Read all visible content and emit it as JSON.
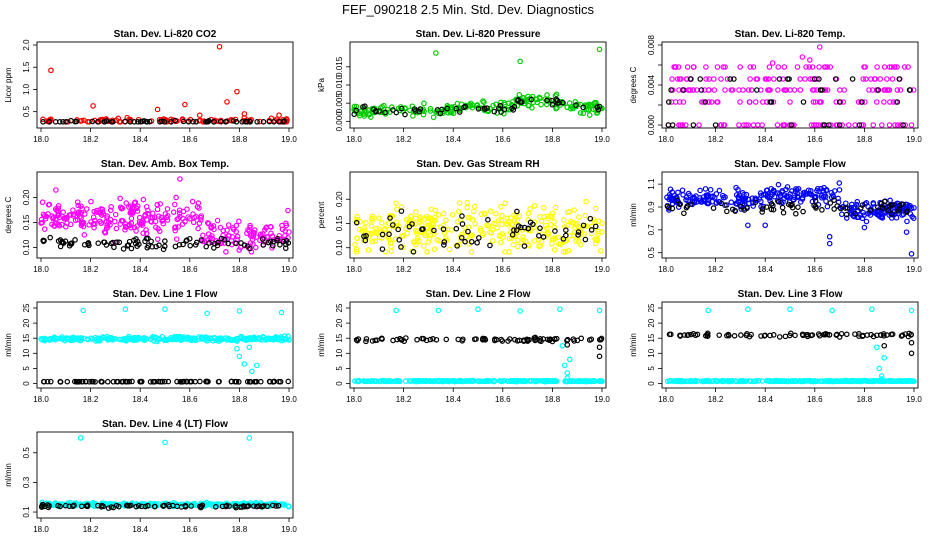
{
  "title": "FEF_090218  2.5 Min. Std. Dev. Diagnostics",
  "colors": {
    "red": "#ff0000",
    "green": "#00cc00",
    "magenta": "#ff00ff",
    "yellow": "#ffff00",
    "blue": "#0000ff",
    "cyan": "#00ffff",
    "black": "#000000"
  },
  "chart_data": [
    {
      "type": "scatter",
      "title": "Stan. Dev. Li-820 CO2",
      "xlabel": "",
      "ylabel": "Licor ppm",
      "xlim": [
        18.0,
        19.0
      ],
      "ylim": [
        0.2,
        2.0
      ],
      "xticks": [
        18.0,
        18.2,
        18.4,
        18.6,
        18.8,
        19.0
      ],
      "xtick_labels": [
        "18.0",
        "18.2",
        "18.4",
        "18.6",
        "18.8",
        "19.0"
      ],
      "yticks": [
        0.5,
        1.0,
        1.5,
        2.0
      ],
      "ytick_labels": [
        "0.5",
        "1.0",
        "1.5",
        "2.0"
      ],
      "series": [
        {
          "name": "primary",
          "color": "red",
          "base": 0.3,
          "noise": 0.06,
          "n": 90,
          "outliers": [
            [
              18.04,
              1.43
            ],
            [
              18.21,
              0.63
            ],
            [
              18.47,
              0.55
            ],
            [
              18.58,
              0.66
            ],
            [
              18.64,
              0.42
            ],
            [
              18.72,
              1.96
            ],
            [
              18.75,
              0.72
            ],
            [
              18.79,
              0.95
            ],
            [
              18.82,
              0.45
            ],
            [
              18.96,
              0.42
            ]
          ]
        },
        {
          "name": "secondary",
          "color": "black",
          "base": 0.27,
          "noise": 0.03,
          "n": 60,
          "outliers": []
        }
      ]
    },
    {
      "type": "scatter",
      "title": "Stan. Dev. Li-820 Pressure",
      "xlabel": "",
      "ylabel": "kPa",
      "xlim": [
        18.0,
        19.0
      ],
      "ylim": [
        -0.001,
        0.021
      ],
      "xticks": [
        18.0,
        18.2,
        18.4,
        18.6,
        18.8,
        19.0
      ],
      "xtick_labels": [
        "18.0",
        "18.2",
        "18.4",
        "18.6",
        "18.8",
        "19.0"
      ],
      "yticks": [
        0.0,
        0.005,
        0.01,
        0.015
      ],
      "ytick_labels": [
        "0.000",
        "0.005",
        "0.010",
        "0.015"
      ],
      "series": [
        {
          "name": "primary",
          "color": "green",
          "base": 0.003,
          "noise": 0.0018,
          "n": 200,
          "outliers": [
            [
              18.33,
              0.0188
            ],
            [
              18.67,
              0.0165
            ],
            [
              18.99,
              0.0198
            ],
            [
              18.68,
              0.0065
            ],
            [
              18.72,
              0.0068
            ],
            [
              18.75,
              0.0063
            ]
          ]
        },
        {
          "name": "secondary",
          "color": "black",
          "base": 0.003,
          "noise": 0.0012,
          "n": 55,
          "outliers": []
        }
      ]
    },
    {
      "type": "scatter",
      "title": "Stan. Dev. Li-820 Temp.",
      "xlabel": "",
      "ylabel": "degrees C",
      "xlim": [
        18.0,
        19.0
      ],
      "ylim": [
        0.0,
        0.008
      ],
      "xticks": [
        18.0,
        18.2,
        18.4,
        18.6,
        18.8,
        19.0
      ],
      "xtick_labels": [
        "18.0",
        "18.2",
        "18.4",
        "18.6",
        "18.8",
        "19.0"
      ],
      "yticks": [
        0.0,
        0.002,
        0.004,
        0.006,
        0.008
      ],
      "ytick_labels": [
        "0.000",
        "",
        "0.004",
        "",
        "0.008"
      ],
      "series": [
        {
          "name": "primary",
          "color": "magenta",
          "levels": [
            0.0,
            0.0023,
            0.0035,
            0.0046,
            0.0058
          ],
          "n": 220,
          "outliers": [
            [
              18.62,
              0.0078
            ],
            [
              18.55,
              0.0068
            ],
            [
              18.43,
              0.0062
            ],
            [
              18.58,
              0.0065
            ]
          ]
        },
        {
          "name": "secondary",
          "color": "black",
          "levels": [
            0.0,
            0.0023,
            0.0035,
            0.0046
          ],
          "n": 40,
          "outliers": []
        }
      ]
    },
    {
      "type": "scatter",
      "title": "Stan. Dev. Amb. Box Temp.",
      "xlabel": "",
      "ylabel": "degrees C",
      "xlim": [
        18.0,
        19.0
      ],
      "ylim": [
        0.085,
        0.245
      ],
      "xticks": [
        18.0,
        18.2,
        18.4,
        18.6,
        18.8,
        19.0
      ],
      "xtick_labels": [
        "18.0",
        "18.2",
        "18.4",
        "18.6",
        "18.8",
        "19.0"
      ],
      "yticks": [
        0.1,
        0.15,
        0.2
      ],
      "ytick_labels": [
        "0.10",
        "0.15",
        "0.20"
      ],
      "series": [
        {
          "name": "primary",
          "color": "magenta",
          "base": 0.16,
          "noise": 0.035,
          "n": 320,
          "outliers": [
            [
              18.56,
              0.237
            ],
            [
              18.06,
              0.215
            ]
          ]
        },
        {
          "name": "secondary",
          "color": "black",
          "base": 0.108,
          "noise": 0.012,
          "n": 90,
          "outliers": []
        }
      ]
    },
    {
      "type": "scatter",
      "title": "Stan. Dev. Gas Stream RH",
      "xlabel": "",
      "ylabel": "percent",
      "xlim": [
        18.0,
        19.0
      ],
      "ylim": [
        0.085,
        0.25
      ],
      "xticks": [
        18.0,
        18.2,
        18.4,
        18.6,
        18.8,
        19.0
      ],
      "xtick_labels": [
        "18.0",
        "18.2",
        "18.4",
        "18.6",
        "18.8",
        "19.0"
      ],
      "yticks": [
        0.1,
        0.15,
        0.2
      ],
      "ytick_labels": [
        "0.10",
        "0.15",
        "0.20"
      ],
      "series": [
        {
          "name": "primary",
          "color": "yellow",
          "base": 0.14,
          "noise": 0.05,
          "n": 330,
          "outliers": []
        },
        {
          "name": "secondary",
          "color": "black",
          "base": 0.13,
          "noise": 0.04,
          "n": 60,
          "outliers": []
        }
      ]
    },
    {
      "type": "scatter",
      "title": "Stan. Dev. Sample Flow",
      "xlabel": "",
      "ylabel": "ml/min",
      "xlim": [
        18.0,
        19.0
      ],
      "ylim": [
        0.48,
        1.18
      ],
      "xticks": [
        18.0,
        18.2,
        18.4,
        18.6,
        18.8,
        19.0
      ],
      "xtick_labels": [
        "18.0",
        "18.2",
        "18.4",
        "18.6",
        "18.8",
        "19.0"
      ],
      "yticks": [
        0.5,
        0.7,
        0.9,
        1.1
      ],
      "ytick_labels": [
        "0.5",
        "0.7",
        "0.9",
        "1.1"
      ],
      "series": [
        {
          "name": "primary",
          "color": "blue",
          "base": 0.97,
          "noise": 0.09,
          "n": 330,
          "outliers": [
            [
              18.99,
              0.49
            ],
            [
              18.66,
              0.58
            ],
            [
              18.66,
              0.64
            ],
            [
              18.33,
              0.74
            ],
            [
              18.4,
              0.74
            ],
            [
              18.8,
              0.72
            ],
            [
              18.97,
              0.68
            ]
          ]
        },
        {
          "name": "secondary",
          "color": "black",
          "base": 0.9,
          "noise": 0.06,
          "n": 70,
          "outliers": []
        }
      ]
    },
    {
      "type": "scatter",
      "title": "Stan. Dev. Line 1 Flow",
      "xlabel": "",
      "ylabel": "ml/min",
      "xlim": [
        18.0,
        19.0
      ],
      "ylim": [
        -0.5,
        26.0
      ],
      "xticks": [
        18.0,
        18.2,
        18.4,
        18.6,
        18.8,
        19.0
      ],
      "xtick_labels": [
        "18.0",
        "18.2",
        "18.4",
        "18.6",
        "18.8",
        "19.0"
      ],
      "yticks": [
        0,
        5,
        10,
        15,
        20,
        25
      ],
      "ytick_labels": [
        "0",
        "5",
        "10",
        "15",
        "20",
        "25"
      ],
      "series": [
        {
          "name": "primary",
          "color": "cyan",
          "base": 14.8,
          "noise": 0.7,
          "n": 300,
          "outliers": [
            [
              18.17,
              24.2
            ],
            [
              18.34,
              24.6
            ],
            [
              18.5,
              24.6
            ],
            [
              18.67,
              23.2
            ],
            [
              18.8,
              24.0
            ],
            [
              18.97,
              23.5
            ],
            [
              18.8,
              9.0
            ],
            [
              18.82,
              6.5
            ],
            [
              18.84,
              12.0
            ],
            [
              18.87,
              6.0
            ],
            [
              18.79,
              11.5
            ],
            [
              18.85,
              4.0
            ]
          ]
        },
        {
          "name": "secondary",
          "color": "black",
          "base": 0.6,
          "noise": 0.08,
          "n": 90,
          "outliers": []
        }
      ]
    },
    {
      "type": "scatter",
      "title": "Stan. Dev. Line 2 Flow",
      "xlabel": "",
      "ylabel": "ml/min",
      "xlim": [
        18.0,
        19.0
      ],
      "ylim": [
        -0.5,
        26.0
      ],
      "xticks": [
        18.0,
        18.2,
        18.4,
        18.6,
        18.8,
        19.0
      ],
      "xtick_labels": [
        "18.0",
        "18.2",
        "18.4",
        "18.6",
        "18.8",
        "19.0"
      ],
      "yticks": [
        0,
        5,
        10,
        15,
        20,
        25
      ],
      "ytick_labels": [
        "0",
        "5",
        "10",
        "15",
        "20",
        "25"
      ],
      "series": [
        {
          "name": "primary",
          "color": "cyan",
          "base": 0.8,
          "noise": 0.15,
          "n": 300,
          "outliers": [
            [
              18.17,
              24.2
            ],
            [
              18.34,
              24.2
            ],
            [
              18.5,
              24.6
            ],
            [
              18.67,
              24.0
            ],
            [
              18.83,
              24.6
            ],
            [
              18.99,
              24.2
            ],
            [
              18.85,
              6.0
            ],
            [
              18.86,
              3.5
            ],
            [
              18.87,
              8.0
            ],
            [
              18.84,
              12.5
            ],
            [
              18.86,
              1.8
            ]
          ]
        },
        {
          "name": "secondary",
          "color": "black",
          "base": 14.5,
          "noise": 0.6,
          "n": 80,
          "outliers": [
            [
              18.86,
              12.8
            ],
            [
              18.99,
              9.0
            ],
            [
              18.99,
              12.0
            ]
          ]
        }
      ]
    },
    {
      "type": "scatter",
      "title": "Stan. Dev. Line 3 Flow",
      "xlabel": "",
      "ylabel": "ml/min",
      "xlim": [
        18.0,
        19.0
      ],
      "ylim": [
        -0.5,
        26.0
      ],
      "xticks": [
        18.0,
        18.2,
        18.4,
        18.6,
        18.8,
        19.0
      ],
      "xtick_labels": [
        "18.0",
        "18.2",
        "18.4",
        "18.6",
        "18.8",
        "19.0"
      ],
      "yticks": [
        0,
        5,
        10,
        15,
        20,
        25
      ],
      "ytick_labels": [
        "0",
        "5",
        "10",
        "15",
        "20",
        "25"
      ],
      "series": [
        {
          "name": "primary",
          "color": "cyan",
          "base": 0.8,
          "noise": 0.15,
          "n": 300,
          "outliers": [
            [
              18.17,
              24.2
            ],
            [
              18.33,
              24.6
            ],
            [
              18.5,
              24.6
            ],
            [
              18.67,
              24.2
            ],
            [
              18.83,
              24.6
            ],
            [
              18.99,
              24.2
            ],
            [
              18.86,
              5.0
            ],
            [
              18.87,
              2.5
            ],
            [
              18.88,
              8.5
            ],
            [
              18.85,
              12.0
            ],
            [
              18.87,
              1.5
            ]
          ]
        },
        {
          "name": "secondary",
          "color": "black",
          "base": 16.0,
          "noise": 0.6,
          "n": 80,
          "outliers": [
            [
              18.88,
              12.5
            ],
            [
              18.99,
              10.0
            ],
            [
              18.99,
              13.5
            ]
          ]
        }
      ]
    },
    {
      "type": "scatter",
      "title": "Stan. Dev. Line 4 (LT) Flow",
      "xlabel": "",
      "ylabel": "ml/min",
      "xlim": [
        18.0,
        19.0
      ],
      "ylim": [
        0.08,
        0.62
      ],
      "xticks": [
        18.0,
        18.2,
        18.4,
        18.6,
        18.8,
        19.0
      ],
      "xtick_labels": [
        "18.0",
        "18.2",
        "18.4",
        "18.6",
        "18.8",
        "19.0"
      ],
      "yticks": [
        0.1,
        0.3,
        0.5
      ],
      "ytick_labels": [
        "0.1",
        "0.3",
        "0.5"
      ],
      "series": [
        {
          "name": "primary",
          "color": "cyan",
          "base": 0.15,
          "noise": 0.012,
          "n": 300,
          "outliers": [
            [
              18.16,
              0.6
            ],
            [
              18.5,
              0.57
            ],
            [
              18.84,
              0.6
            ]
          ]
        },
        {
          "name": "secondary",
          "color": "black",
          "base": 0.14,
          "noise": 0.01,
          "n": 80,
          "outliers": []
        }
      ]
    }
  ]
}
